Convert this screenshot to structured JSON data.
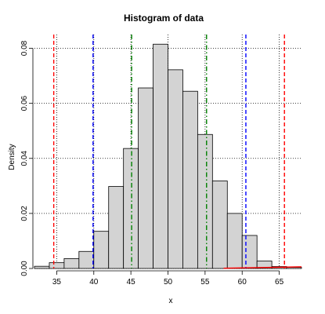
{
  "chart_data": {
    "type": "bar",
    "title": "Histogram of data",
    "xlabel": "x",
    "ylabel": "Density",
    "xlim": [
      32,
      68
    ],
    "ylim": [
      0,
      0.085
    ],
    "x_ticks": [
      35,
      40,
      45,
      50,
      55,
      60,
      65
    ],
    "x_tick_labels": [
      "35",
      "40",
      "45",
      "50",
      "55",
      "60",
      "65"
    ],
    "y_ticks": [
      0.0,
      0.02,
      0.04,
      0.06,
      0.08
    ],
    "y_tick_labels": [
      "0.00",
      "0.02",
      "0.04",
      "0.06",
      "0.08"
    ],
    "bins": [
      {
        "start": 32,
        "end": 34,
        "density": 0.0008
      },
      {
        "start": 34,
        "end": 36,
        "density": 0.0021
      },
      {
        "start": 36,
        "end": 38,
        "density": 0.0036
      },
      {
        "start": 38,
        "end": 40,
        "density": 0.0062
      },
      {
        "start": 40,
        "end": 42,
        "density": 0.0135
      },
      {
        "start": 42,
        "end": 44,
        "density": 0.0298
      },
      {
        "start": 44,
        "end": 46,
        "density": 0.0436
      },
      {
        "start": 46,
        "end": 48,
        "density": 0.0656
      },
      {
        "start": 48,
        "end": 50,
        "density": 0.0815
      },
      {
        "start": 50,
        "end": 52,
        "density": 0.0722
      },
      {
        "start": 52,
        "end": 54,
        "density": 0.0644
      },
      {
        "start": 54,
        "end": 56,
        "density": 0.0487
      },
      {
        "start": 56,
        "end": 58,
        "density": 0.0318
      },
      {
        "start": 58,
        "end": 60,
        "density": 0.02
      },
      {
        "start": 60,
        "end": 62,
        "density": 0.012
      },
      {
        "start": 62,
        "end": 64,
        "density": 0.0027
      },
      {
        "start": 64,
        "end": 66,
        "density": 0.0007
      },
      {
        "start": 66,
        "end": 68,
        "density": 0.0004
      }
    ],
    "bar_fill": "#d3d3d3",
    "bar_stroke": "#000000",
    "grid": "dotted horizontal and vertical",
    "vertical_lines": [
      {
        "x": 34.6,
        "color": "#ff0000",
        "style": "dashed"
      },
      {
        "x": 39.9,
        "color": "#0000ff",
        "style": "dashed"
      },
      {
        "x": 45.1,
        "color": "#008000",
        "style": "dashdot"
      },
      {
        "x": 55.2,
        "color": "#008000",
        "style": "dashdot"
      },
      {
        "x": 60.5,
        "color": "#0000ff",
        "style": "dashed"
      },
      {
        "x": 65.7,
        "color": "#ff0000",
        "style": "dashed"
      }
    ],
    "trailing_line": {
      "x_start": 57.5,
      "x_end": 68,
      "y_start": 0.0001,
      "y_end": 0.0006,
      "color": "#ff0000"
    }
  }
}
